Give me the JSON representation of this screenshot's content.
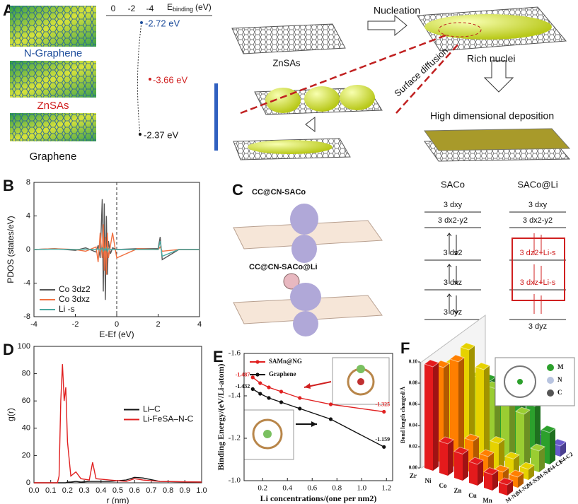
{
  "panel_a": {
    "label": "A",
    "axis_title": "E",
    "axis_sub": "binding",
    "axis_unit": "(eV)",
    "axis_ticks": [
      "0",
      "-2",
      "-4"
    ],
    "materials": [
      "N-Graphene",
      "ZnSAs",
      "Graphene"
    ],
    "energies": [
      "-2.72 eV",
      "-3.66 eV",
      "-2.37 eV"
    ],
    "scheme": {
      "znsas": "ZnSAs",
      "nucleation": "Nucleation",
      "rich_nuclei": "Rich nuclei",
      "surface_diffusion": "Surface diffusion",
      "deposition": "High dimensional deposition"
    }
  },
  "panel_c": {
    "label": "C",
    "structures": [
      "CC@CN-SACo",
      "CC@CN-SACo@Li"
    ],
    "columns": [
      "SACo",
      "SACo@Li"
    ],
    "left_levels": [
      "3 dxy",
      "3 dx2-y2",
      "3 dz2",
      "3 dxz",
      "3 dyz"
    ],
    "right_levels": [
      "3 dxy",
      "3 dx2-y2",
      "3 dz2+Li-s",
      "3 dxz+Li-s",
      "3 dyz"
    ]
  },
  "chart_data": [
    {
      "panel": "B",
      "type": "line",
      "x_label": "E-Ef (eV)",
      "y_label": "PDOS (states/eV)",
      "xlim": [
        -4,
        4
      ],
      "xticks": [
        -4,
        -2,
        0,
        2,
        4
      ],
      "ylim": [
        -8,
        8
      ],
      "yticks": [
        -8,
        -4,
        0,
        4,
        8
      ],
      "vline": 0,
      "legend": "lower left",
      "x": [
        -4,
        -3,
        -2,
        -1.5,
        -1,
        -0.9,
        -0.8,
        -0.7,
        -0.65,
        -0.6,
        -0.55,
        -0.5,
        -0.45,
        -0.4,
        -0.3,
        -0.2,
        0,
        1,
        2,
        2.1,
        2.2,
        3,
        4
      ],
      "series": [
        {
          "name": "Co 3dz2",
          "color": "#555555",
          "values": [
            0,
            0.1,
            -0.1,
            0.2,
            -0.3,
            0.5,
            -1,
            6,
            -5,
            5.5,
            -6,
            4,
            -3,
            1,
            -0.5,
            0.2,
            0,
            0.1,
            0.1,
            1.5,
            -1.2,
            0,
            0
          ]
        },
        {
          "name": "Co 3dxz",
          "color": "#f07040",
          "values": [
            0,
            0.1,
            0,
            -0.2,
            0.3,
            -1.5,
            2,
            -1,
            3,
            -2.5,
            1.5,
            -3,
            2,
            -1,
            0.5,
            2,
            -1,
            0.1,
            0,
            0.3,
            -0.2,
            0,
            0
          ]
        },
        {
          "name": "Li -s",
          "color": "#4aa8a0",
          "values": [
            0,
            0.05,
            0,
            0.05,
            0,
            0.1,
            -0.1,
            0.2,
            -0.2,
            0.1,
            -0.1,
            0.2,
            -0.2,
            0.1,
            0,
            0,
            0,
            0,
            0,
            1,
            -0.8,
            0,
            0
          ]
        }
      ]
    },
    {
      "panel": "D",
      "type": "line",
      "x_label": "r (nm)",
      "y_label": "g(r)",
      "xlim": [
        0,
        1
      ],
      "xticks": [
        {
          "value": 0,
          "label": "0.0"
        },
        0.1,
        0.2,
        0.3,
        0.4,
        0.5,
        0.6,
        0.7,
        0.8,
        0.9,
        {
          "value": 1,
          "label": "1.0"
        }
      ],
      "ylim": [
        0,
        100
      ],
      "yticks": [
        0,
        20,
        40,
        60,
        80,
        100
      ],
      "legend": "center right",
      "x": [
        0,
        0.14,
        0.15,
        0.16,
        0.17,
        0.18,
        0.19,
        0.2,
        0.22,
        0.25,
        0.28,
        0.33,
        0.35,
        0.37,
        0.45,
        0.55,
        0.6,
        0.65,
        0.75,
        1.0
      ],
      "series": [
        {
          "name": "Li–C",
          "color": "#111111",
          "values": [
            0,
            0,
            0,
            0,
            0,
            0,
            0,
            0.5,
            0.5,
            1,
            0.5,
            1,
            1,
            1,
            1,
            2,
            4,
            3.5,
            1,
            0.5
          ]
        },
        {
          "name": "Li-FeSA–N-C",
          "color": "#e02020",
          "values": [
            0,
            0,
            5,
            60,
            87,
            60,
            70,
            30,
            5,
            8,
            3,
            2,
            15,
            3,
            2,
            1,
            3,
            2,
            1,
            0.5
          ]
        }
      ]
    },
    {
      "panel": "E",
      "type": "line",
      "markers": true,
      "x_label": "Li concentrations/(one per nm2)",
      "y_label": "Binding Energy/(eV/Li-atom)",
      "xlim": [
        0.05,
        1.25
      ],
      "xticks": [
        0.2,
        0.4,
        0.6,
        0.8,
        {
          "value": 1,
          "label": "1.0"
        },
        1.2
      ],
      "ylim": [
        -1,
        -1.6
      ],
      "yticks": [
        {
          "value": -1,
          "label": "-1.0"
        },
        -1.2,
        -1.4,
        -1.6
      ],
      "legend": "upper left",
      "x": [
        0.12,
        0.18,
        0.25,
        0.35,
        0.5,
        0.75,
        1.18
      ],
      "series": [
        {
          "name": "SAMn@NG",
          "color": "#e02020",
          "values": [
            -1.487,
            -1.46,
            -1.44,
            -1.42,
            -1.39,
            -1.36,
            -1.325
          ],
          "value_labels": [
            "-1.487",
            null,
            null,
            null,
            null,
            null,
            "-1.325"
          ]
        },
        {
          "name": "Graphene",
          "color": "#111111",
          "values": [
            -1.432,
            -1.41,
            -1.39,
            -1.37,
            -1.34,
            -1.29,
            -1.159
          ],
          "value_labels": [
            "-1.432",
            null,
            null,
            null,
            null,
            null,
            "-1.159"
          ]
        }
      ]
    },
    {
      "panel": "F",
      "type": "bar3d",
      "z_label": "Bond length changed/Å",
      "categories": [
        "Zr",
        "Ni",
        "Co",
        "Zn",
        "Cu",
        "Mn"
      ],
      "zlim": [
        0,
        0.1
      ],
      "zticks": [
        {
          "value": 0,
          "label": "0.00"
        },
        {
          "value": 0.02,
          "label": "0.02"
        },
        {
          "value": 0.04,
          "label": "0.04"
        },
        {
          "value": 0.06,
          "label": "0.06"
        },
        {
          "value": 0.08,
          "label": "0.08"
        },
        {
          "value": 0.1,
          "label": "0.10"
        }
      ],
      "atoms": [
        "M",
        "N",
        "C"
      ],
      "series": [
        {
          "name": "M-N1",
          "color": "#e41a1c",
          "values": [
            0.098,
            0.03,
            0.025,
            0.02,
            0.015,
            0.01
          ]
        },
        {
          "name": "M-N2",
          "color": "#ff7f00",
          "values": [
            0.09,
            0.1,
            0.03,
            0.02,
            0.01,
            0.01
          ]
        },
        {
          "name": "M-N3",
          "color": "#e6d200",
          "values": [
            0.085,
            0.104,
            0.09,
            0.025,
            0.015,
            0.01
          ]
        },
        {
          "name": "M-N4",
          "color": "#9acd32",
          "values": [
            0.06,
            0.07,
            0.065,
            0.06,
            0.05,
            0.02
          ]
        },
        {
          "name": "N4-C1",
          "color": "#2ca02c",
          "values": [
            0.05,
            0.06,
            0.06,
            0.065,
            0.05,
            0.03
          ]
        },
        {
          "name": "N4-C2",
          "color": "#6a5acd",
          "values": [
            0.02,
            0.03,
            0.02,
            0.015,
            0.015,
            0.01
          ]
        }
      ]
    }
  ]
}
